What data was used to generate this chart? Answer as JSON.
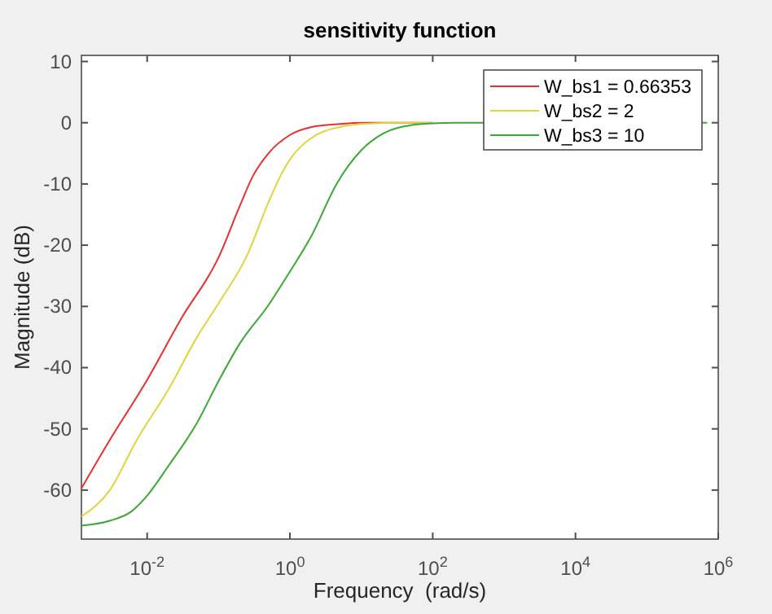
{
  "chart_data": {
    "type": "line",
    "title": "sensitivity function",
    "xlabel": "Frequency  (rad/s)",
    "ylabel": "Magnitude (dB)",
    "log": "x",
    "xlim": [
      0.0012,
      1000000
    ],
    "ylim": [
      -68,
      11
    ],
    "xticks": [
      {
        "value": 0.01,
        "label": "10$^{-2}$"
      },
      {
        "value": 1,
        "label": "10$^{0}$"
      },
      {
        "value": 100,
        "label": "10$^{2}$"
      },
      {
        "value": 10000,
        "label": "10$^{4}$"
      },
      {
        "value": 1000000,
        "label": "10$^{6}$"
      }
    ],
    "yticks": [
      10,
      0,
      -10,
      -20,
      -30,
      -40,
      -50,
      -60
    ],
    "grid": false,
    "legend": "top right",
    "line_style": "solid",
    "marker": "none",
    "series": [
      {
        "name": "W_bs1 = 0.66353",
        "color": "#e8302f",
        "x": [
          0.0012,
          0.003,
          0.01,
          0.03,
          0.1,
          0.2,
          0.3,
          0.5,
          1,
          2,
          5,
          10,
          100
        ],
        "values": [
          -59.7,
          -51.8,
          -42,
          -32,
          -22,
          -13.5,
          -8.8,
          -5,
          -2,
          -0.7,
          -0.2,
          0,
          0
        ]
      },
      {
        "name": "W_bs2 = 2",
        "color": "#e3d33b",
        "x": [
          0.0012,
          0.003,
          0.007,
          0.02,
          0.05,
          0.1,
          0.25,
          0.5,
          0.75,
          1,
          2,
          5,
          10,
          30,
          100
        ],
        "values": [
          -64.3,
          -60,
          -52,
          -43.5,
          -35,
          -29.5,
          -21.7,
          -13,
          -8.5,
          -6,
          -2.5,
          -0.7,
          -0.2,
          0,
          0
        ]
      },
      {
        "name": "W_bs3 = 10",
        "color": "#3aa935",
        "x": [
          0.0012,
          0.003,
          0.006,
          0.01,
          0.02,
          0.05,
          0.1,
          0.2,
          0.5,
          1,
          2,
          4.5,
          10,
          20,
          50,
          100,
          200,
          700000
        ],
        "values": [
          -65.8,
          -65,
          -63.5,
          -60.9,
          -56,
          -49,
          -42.2,
          -36,
          -29.8,
          -24.3,
          -18.5,
          -10,
          -4.5,
          -1.8,
          -0.4,
          -0.1,
          0,
          0
        ]
      }
    ]
  }
}
